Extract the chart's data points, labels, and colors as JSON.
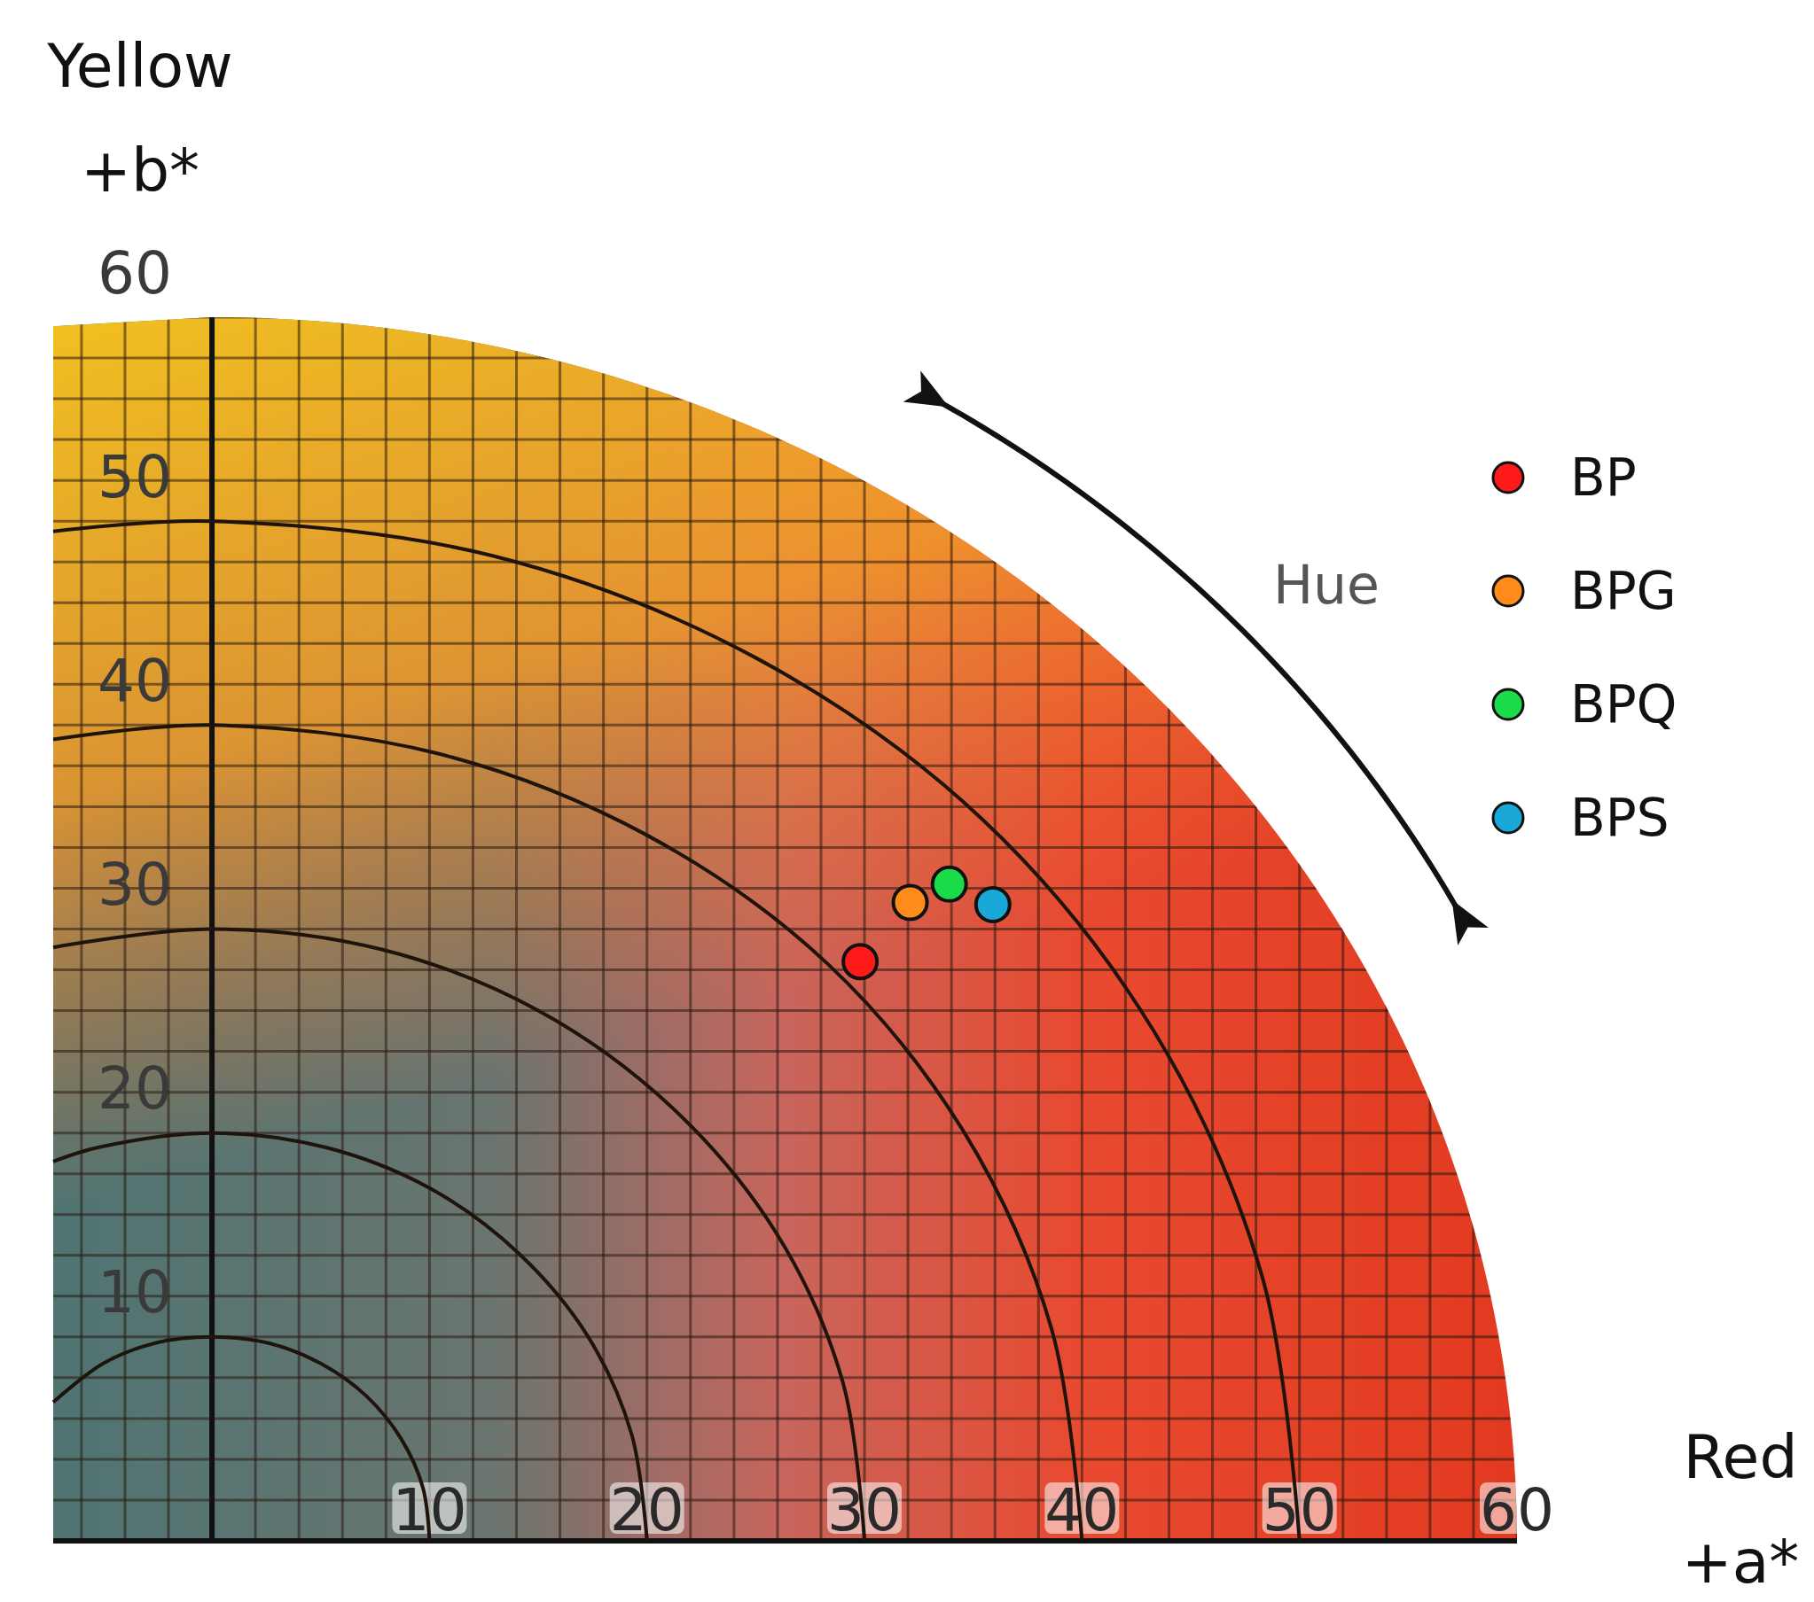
{
  "chart_data": {
    "type": "scatter",
    "xlabel": "Red\n+a*",
    "ylabel": "Yellow\n+b*",
    "xlim": [
      -7.3,
      60
    ],
    "ylim": [
      0,
      60
    ],
    "xticks": [
      10,
      20,
      30,
      40,
      50,
      60
    ],
    "yticks": [
      10,
      20,
      30,
      40,
      50,
      60
    ],
    "grid": true,
    "legend": "top right",
    "marker": "circle",
    "annotations": [
      "Hue"
    ],
    "series": [
      {
        "name": "BP",
        "color": "#ff1a1a",
        "x": [
          29.8
        ],
        "values": [
          28.4
        ]
      },
      {
        "name": "BPG",
        "color": "#ff8c1a",
        "x": [
          32.1
        ],
        "values": [
          31.3
        ]
      },
      {
        "name": "BPQ",
        "color": "#1adb4a",
        "x": [
          33.9
        ],
        "values": [
          32.2
        ]
      },
      {
        "name": "BPS",
        "color": "#1aa8d8",
        "x": [
          35.9
        ],
        "values": [
          31.2
        ]
      },
      {
        "type": "line",
        "marker": "none",
        "color": "#1e140c",
        "x": [
          -7.3,
          -5,
          -2.6,
          0,
          2.6,
          5,
          7.1,
          8.7,
          9.7,
          10
        ],
        "values": [
          6.8,
          8.7,
          9.7,
          10,
          9.7,
          8.7,
          7.1,
          5,
          2.6,
          0
        ]
      },
      {
        "type": "line",
        "marker": "none",
        "color": "#1e140c",
        "x": [
          -7.3,
          -5.2,
          0,
          5.2,
          10,
          14.1,
          17.3,
          19.3,
          20
        ],
        "values": [
          18.6,
          19.3,
          20,
          19.3,
          17.3,
          14.1,
          10,
          5.2,
          0
        ]
      },
      {
        "type": "line",
        "marker": "none",
        "color": "#1e140c",
        "x": [
          -7.3,
          0,
          7.8,
          15,
          21.2,
          26,
          29,
          30
        ],
        "values": [
          29.1,
          30,
          29,
          26,
          21.2,
          15,
          7.8,
          0
        ]
      },
      {
        "type": "line",
        "marker": "none",
        "color": "#1e140c",
        "x": [
          -7.3,
          0,
          10.4,
          20,
          28.3,
          34.6,
          38.6,
          40
        ],
        "values": [
          39.3,
          40,
          38.6,
          34.6,
          28.3,
          20,
          10.4,
          0
        ]
      },
      {
        "type": "line",
        "marker": "none",
        "color": "#1e140c",
        "x": [
          -7.3,
          0,
          12.9,
          25,
          35.4,
          43.3,
          48.3,
          50
        ],
        "values": [
          49.5,
          50,
          48.3,
          43.3,
          35.4,
          25,
          12.9,
          0
        ]
      }
    ]
  }
}
